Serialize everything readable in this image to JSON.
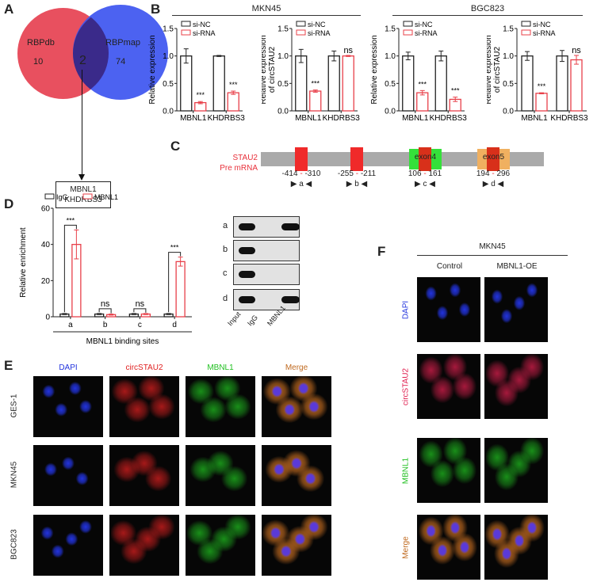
{
  "panel_labels": {
    "A": "A",
    "B": "B",
    "C": "C",
    "D": "D",
    "E": "E",
    "F": "F"
  },
  "panelA": {
    "left_set": "RBPdb",
    "left_count": "10",
    "right_set": "RBPmap",
    "right_count": "74",
    "overlap": "2",
    "result_lines": [
      "MBNL1",
      "KHDRBS3"
    ],
    "colors": {
      "left": "#e8505f",
      "right": "#3d55f0",
      "overlap": "#3a2a8a"
    }
  },
  "panelB": {
    "groups": [
      {
        "title": "MKN45"
      },
      {
        "title": "BGC823"
      }
    ]
  },
  "panelC": {
    "gene": "STAU2",
    "gene_sub": "Pre mRNA",
    "sites": [
      {
        "range_start": "-414",
        "range_end": "-310",
        "primer": "a"
      },
      {
        "range_start": "-255",
        "range_end": "-211",
        "primer": "b"
      },
      {
        "range_start": "106",
        "range_end": "161",
        "primer": "c",
        "exon": "exon4",
        "exon_color": "#35e03a"
      },
      {
        "range_start": "194",
        "range_end": "296",
        "primer": "d",
        "exon": "exon5",
        "exon_color": "#f0b060"
      }
    ],
    "colors": {
      "bar": "#aaaaaa",
      "site": "#f02a2a",
      "label": "#e8303a"
    }
  },
  "panelD_gel": {
    "rows": [
      "a",
      "b",
      "c",
      "d"
    ],
    "lanes": [
      "Input",
      "IgG",
      "MBNL1"
    ],
    "bands": [
      [
        1,
        0,
        1
      ],
      [
        1,
        0,
        0
      ],
      [
        1,
        0,
        0
      ],
      [
        1,
        0,
        1
      ]
    ]
  },
  "panelE": {
    "channels": [
      "DAPI",
      "circSTAU2",
      "MBNL1",
      "Merge"
    ],
    "cell_lines": [
      "GES-1",
      "MKN45",
      "BGC823"
    ],
    "channel_colors": [
      "#2233dd",
      "#e02020",
      "#20c020",
      "#c06a20"
    ]
  },
  "panelF": {
    "title": "MKN45",
    "conditions": [
      "Control",
      "MBNL1-OE"
    ],
    "channels": [
      "DAPI",
      "circSTAU2",
      "MBNL1",
      "Merge"
    ],
    "channel_colors": [
      "#2233dd",
      "#e02050",
      "#20c020",
      "#c06a20"
    ]
  },
  "chart_data": [
    {
      "type": "bar",
      "panel": "B",
      "group": "MKN45",
      "ylabel": "Relative expression",
      "ylim": [
        0,
        1.5
      ],
      "yticks": [
        "0.0",
        "0.5",
        "1.0",
        "1.5"
      ],
      "categories": [
        "MBNL1",
        "KHDRBS3"
      ],
      "series": [
        {
          "name": "si-NC",
          "values": [
            1.0,
            1.0
          ],
          "errors": [
            0.13,
            0.01
          ]
        },
        {
          "name": "si-RNA",
          "values": [
            0.15,
            0.33
          ],
          "errors": [
            0.02,
            0.03
          ]
        }
      ],
      "significance": [
        "***",
        "***"
      ],
      "legend": "top-left"
    },
    {
      "type": "bar",
      "panel": "B",
      "group": "MKN45",
      "ylabel": "Relative expression of circSTAU2",
      "ylim": [
        0,
        1.5
      ],
      "yticks": [
        "0.0",
        "0.5",
        "1.0",
        "1.5"
      ],
      "categories": [
        "MBNL1",
        "KHDRBS3"
      ],
      "series": [
        {
          "name": "si-NC",
          "values": [
            1.0,
            1.0
          ],
          "errors": [
            0.12,
            0.09
          ]
        },
        {
          "name": "si-RNA",
          "values": [
            0.36,
            1.0
          ],
          "errors": [
            0.02,
            0.01
          ]
        }
      ],
      "significance": [
        "***",
        "ns"
      ],
      "legend": "top-left"
    },
    {
      "type": "bar",
      "panel": "B",
      "group": "BGC823",
      "ylabel": "Relative expression",
      "ylim": [
        0,
        1.5
      ],
      "yticks": [
        "0.0",
        "0.5",
        "1.0",
        "1.5"
      ],
      "categories": [
        "MBNL1",
        "KHDRBS3"
      ],
      "series": [
        {
          "name": "si-NC",
          "values": [
            1.0,
            1.0
          ],
          "errors": [
            0.07,
            0.09
          ]
        },
        {
          "name": "si-RNA",
          "values": [
            0.33,
            0.21
          ],
          "errors": [
            0.04,
            0.04
          ]
        }
      ],
      "significance": [
        "***",
        "***"
      ],
      "legend": "top-left"
    },
    {
      "type": "bar",
      "panel": "B",
      "group": "BGC823",
      "ylabel": "Relative expression of circSTAU2",
      "ylim": [
        0,
        1.5
      ],
      "yticks": [
        "0.0",
        "0.5",
        "1.0",
        "1.5"
      ],
      "categories": [
        "MBNL1",
        "KHDRBS3"
      ],
      "series": [
        {
          "name": "si-NC",
          "values": [
            1.0,
            1.0
          ],
          "errors": [
            0.08,
            0.1
          ]
        },
        {
          "name": "si-RNA",
          "values": [
            0.32,
            0.93
          ],
          "errors": [
            0.01,
            0.08
          ]
        }
      ],
      "significance": [
        "***",
        "ns"
      ],
      "legend": "top-left"
    },
    {
      "type": "bar",
      "panel": "D",
      "ylabel": "Relative enrichment",
      "xlabel": "MBNL1 binding sites",
      "ylim": [
        0,
        60
      ],
      "yticks": [
        "0",
        "20",
        "40",
        "60"
      ],
      "categories": [
        "a",
        "b",
        "c",
        "d"
      ],
      "series": [
        {
          "name": "IgG",
          "values": [
            1.5,
            1.5,
            1.5,
            1.5
          ],
          "errors": [
            0.3,
            0.3,
            0.3,
            0.3
          ]
        },
        {
          "name": "MBNL1",
          "values": [
            40,
            1.2,
            1.5,
            30.5
          ],
          "errors": [
            8,
            0.3,
            0.3,
            2.5
          ]
        }
      ],
      "significance": [
        "***",
        "ns",
        "ns",
        "***"
      ],
      "legend": "top"
    }
  ],
  "colors": {
    "control_bar": "#222222",
    "treated_bar": "#e8404a"
  }
}
